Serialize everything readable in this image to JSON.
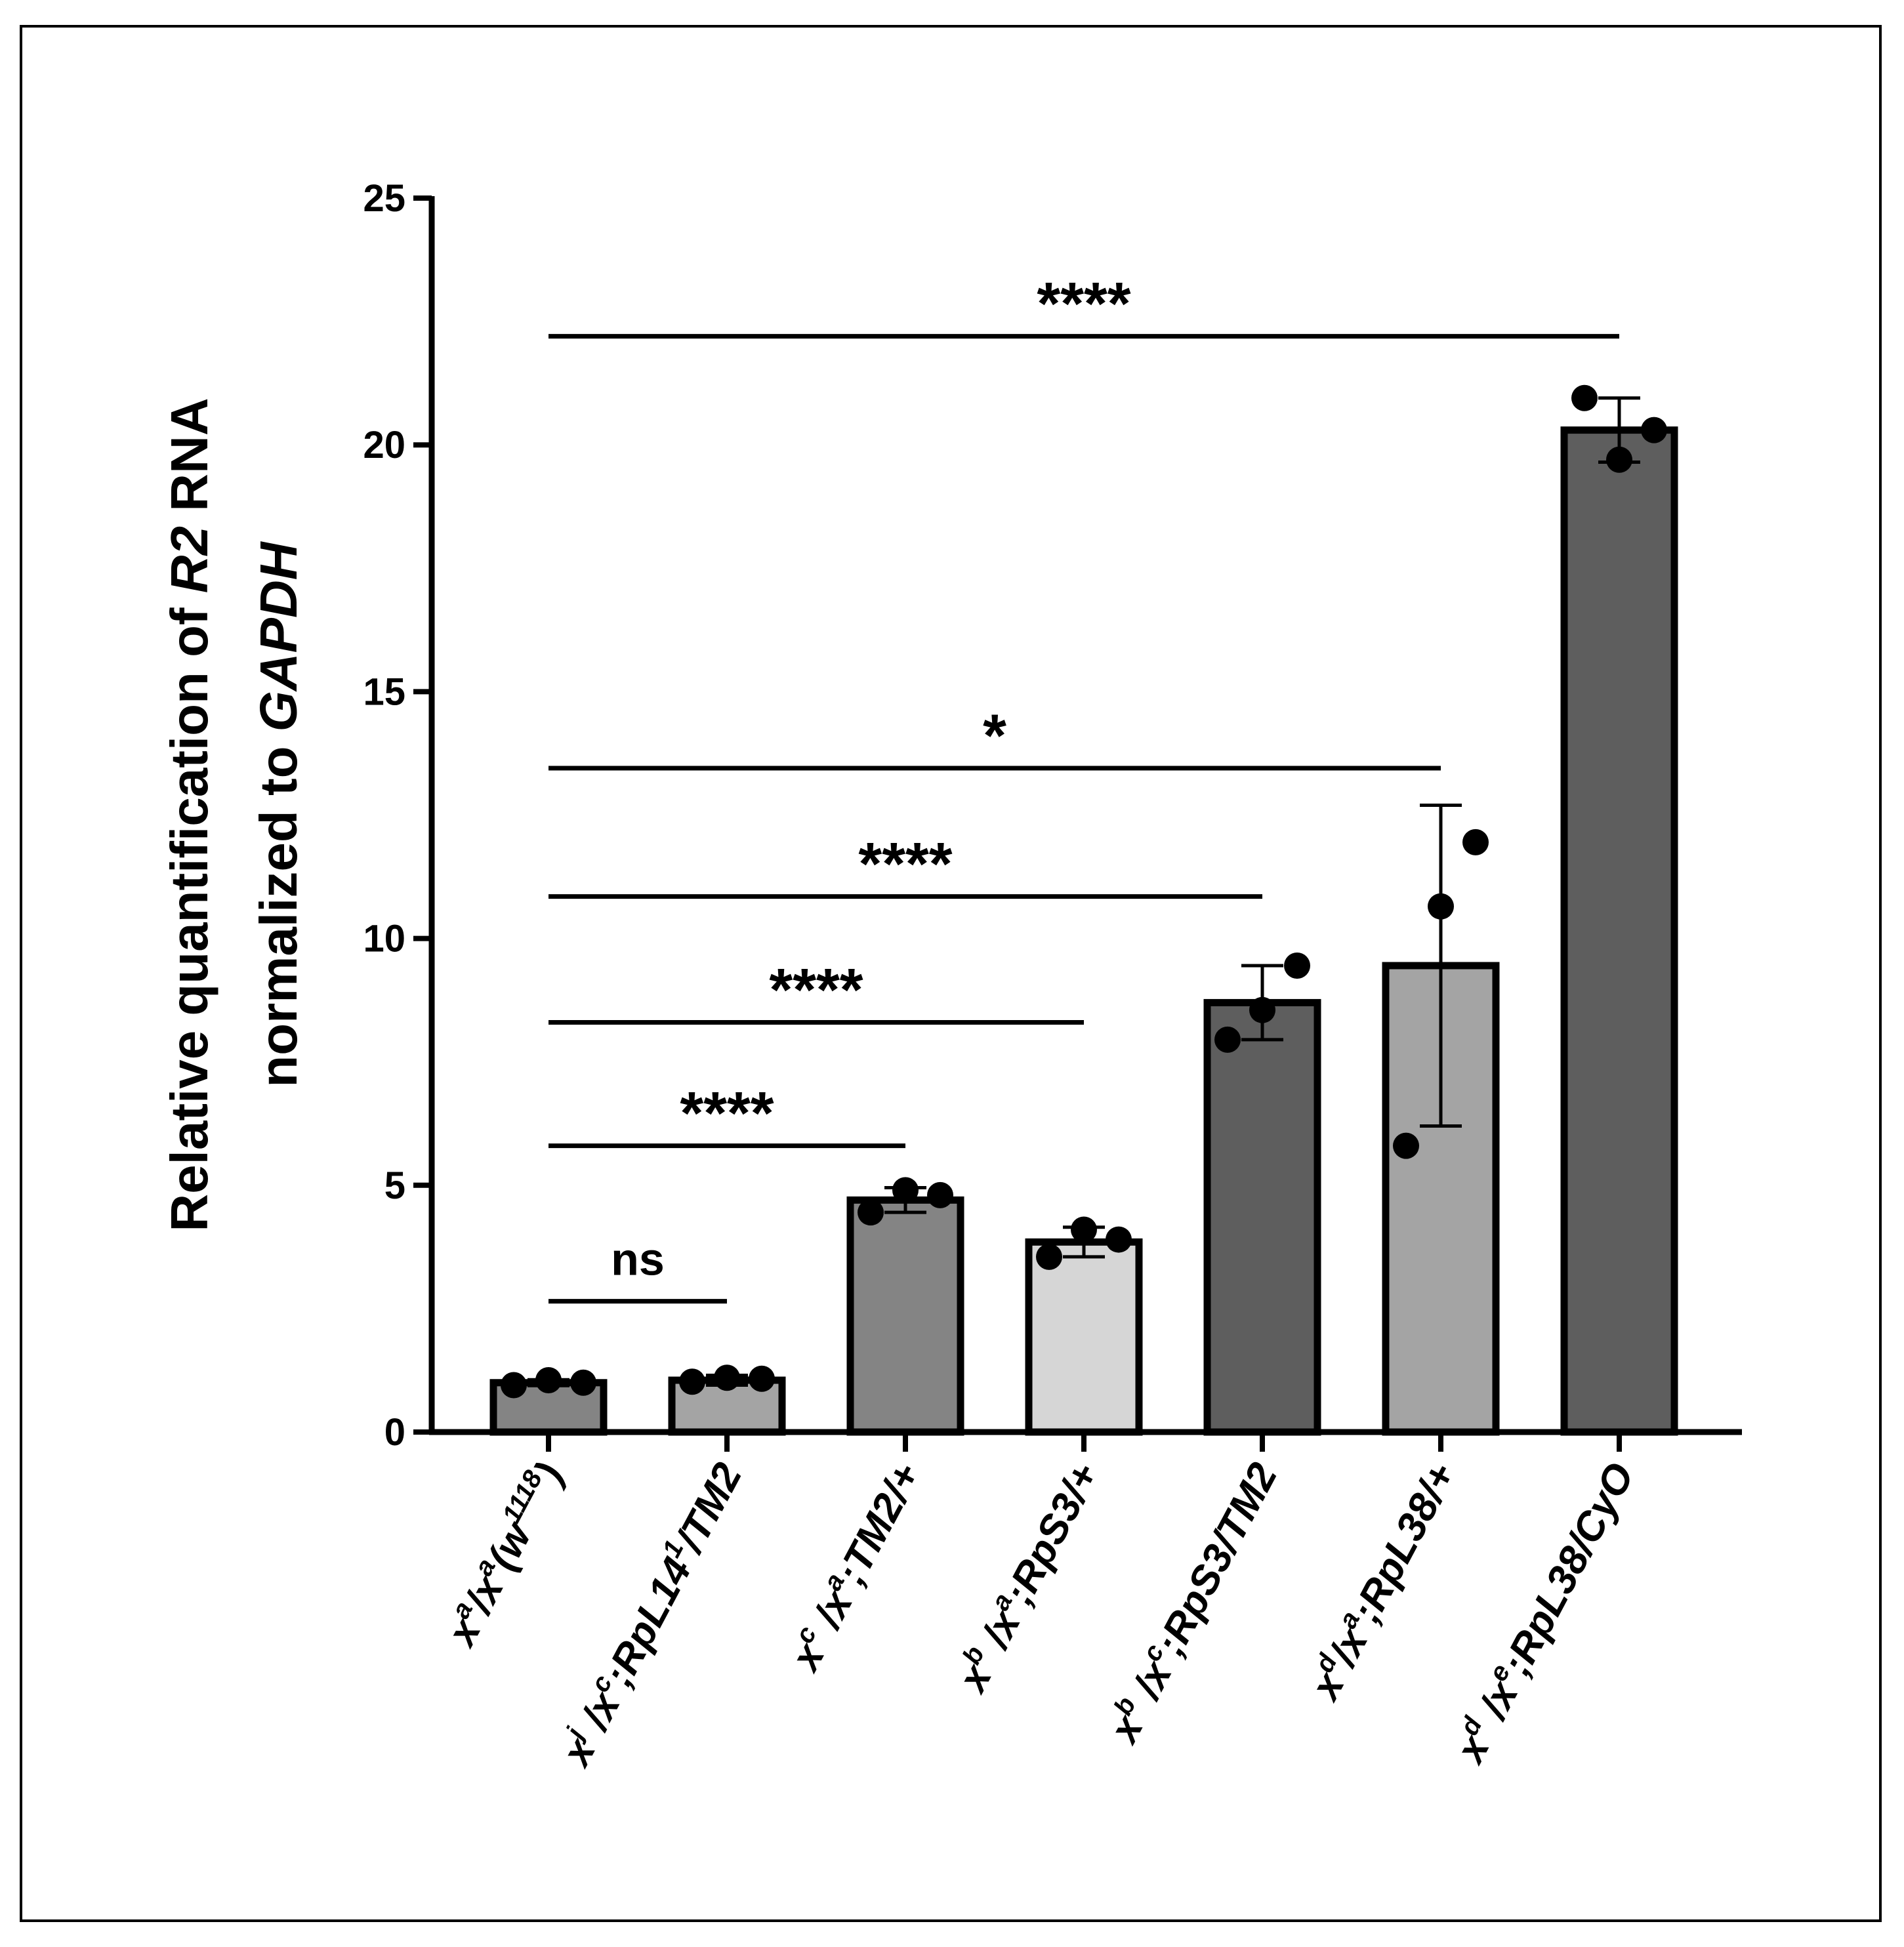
{
  "chart_data": {
    "type": "bar",
    "ylabel": {
      "line1": [
        {
          "text": "Relative quantification of ",
          "italic": false
        },
        {
          "text": "R2",
          "italic": true
        },
        {
          "text": " RNA",
          "italic": false
        }
      ],
      "line2": [
        {
          "text": "normalized to ",
          "italic": false
        },
        {
          "text": "GAPDH",
          "italic": true
        }
      ]
    },
    "ylim": [
      0,
      25
    ],
    "yticks": [
      0,
      5,
      10,
      15,
      20,
      25
    ],
    "categories": [
      {
        "id": "g1",
        "label": [
          [
            "x",
            "n"
          ],
          [
            "a",
            "sup"
          ],
          [
            "/x",
            "n"
          ],
          [
            "a",
            "sup"
          ],
          [
            "(w",
            "n"
          ],
          [
            "1118",
            "sup"
          ],
          [
            ")",
            "n"
          ]
        ]
      },
      {
        "id": "g2",
        "label": [
          [
            "x",
            "n"
          ],
          [
            "j",
            "sup"
          ],
          [
            " /x",
            "n"
          ],
          [
            "c",
            "sup"
          ],
          [
            ";RpL14",
            "n"
          ],
          [
            "1",
            "sup"
          ],
          [
            "/TM2",
            "n"
          ]
        ]
      },
      {
        "id": "g3",
        "label": [
          [
            "x",
            "n"
          ],
          [
            "c",
            "sup"
          ],
          [
            " /x",
            "n"
          ],
          [
            "a",
            "sup"
          ],
          [
            ";TM2/+",
            "n"
          ]
        ]
      },
      {
        "id": "g4",
        "label": [
          [
            "x",
            "n"
          ],
          [
            "b",
            "sup"
          ],
          [
            " /x",
            "n"
          ],
          [
            "a",
            "sup"
          ],
          [
            ";RpS3/+",
            "n"
          ]
        ]
      },
      {
        "id": "g5",
        "label": [
          [
            "x",
            "n"
          ],
          [
            "b",
            "sup"
          ],
          [
            " /x",
            "n"
          ],
          [
            "c",
            "sup"
          ],
          [
            ";RpS3/TM2",
            "n"
          ]
        ]
      },
      {
        "id": "g6",
        "label": [
          [
            "x",
            "n"
          ],
          [
            "d",
            "sup"
          ],
          [
            "/x",
            "n"
          ],
          [
            "a",
            "sup"
          ],
          [
            ";RpL38/+",
            "n"
          ]
        ]
      },
      {
        "id": "g7",
        "label": [
          [
            "x",
            "n"
          ],
          [
            "d",
            "sup"
          ],
          [
            " /x",
            "n"
          ],
          [
            "e",
            "sup"
          ],
          [
            ";RpL38/CyO",
            "n"
          ]
        ]
      }
    ],
    "values": [
      1.0,
      1.05,
      4.7,
      3.85,
      8.7,
      9.45,
      20.3
    ],
    "error": [
      0.06,
      0.1,
      0.25,
      0.3,
      0.75,
      3.25,
      0.65
    ],
    "points": [
      [
        0.95,
        1.05,
        1.0
      ],
      [
        1.02,
        1.1,
        1.08
      ],
      [
        4.45,
        4.9,
        4.8
      ],
      [
        3.55,
        4.1,
        3.9
      ],
      [
        7.95,
        8.55,
        9.45
      ],
      [
        5.8,
        10.65,
        11.95
      ],
      [
        20.95,
        19.7,
        20.3
      ]
    ],
    "bar_colors": [
      "#848484",
      "#a4a4a4",
      "#848484",
      "#d6d6d6",
      "#5e5e5e",
      "#a4a4a4",
      "#5e5e5e"
    ],
    "significance": [
      {
        "from": 0,
        "to": 1,
        "y": 2.65,
        "label": "ns"
      },
      {
        "from": 0,
        "to": 2,
        "y": 5.8,
        "label": "****"
      },
      {
        "from": 0,
        "to": 3,
        "y": 8.3,
        "label": "****"
      },
      {
        "from": 0,
        "to": 4,
        "y": 10.85,
        "label": "****"
      },
      {
        "from": 0,
        "to": 5,
        "y": 13.45,
        "label": "*"
      },
      {
        "from": 0,
        "to": 6,
        "y": 22.2,
        "label": "****"
      }
    ]
  }
}
